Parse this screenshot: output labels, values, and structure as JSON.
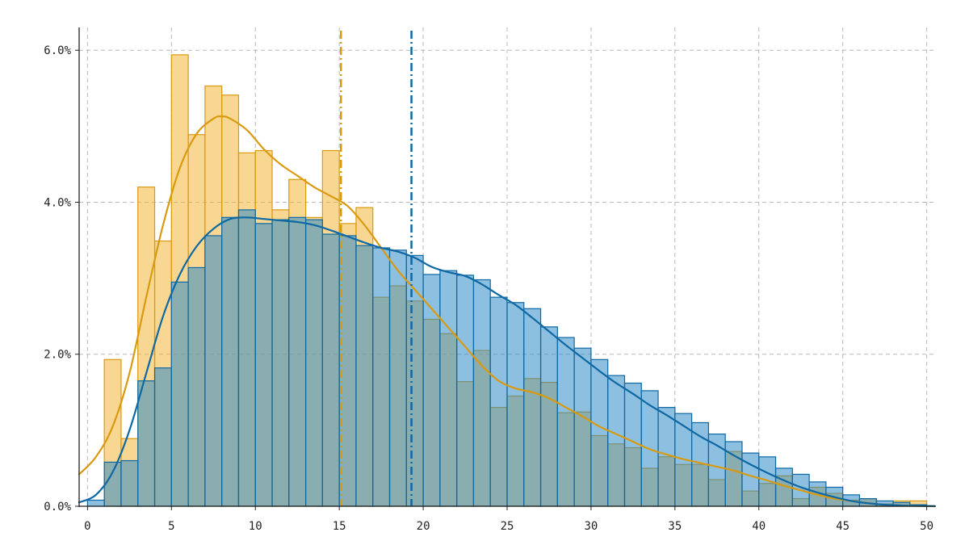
{
  "chart_data": {
    "type": "bar",
    "title": "",
    "xlabel": "",
    "ylabel": "",
    "xlim": [
      -0.5,
      50.5
    ],
    "ylim": [
      0,
      6.3
    ],
    "bin_width": 1,
    "x_ticks": [
      0,
      5,
      10,
      15,
      20,
      25,
      30,
      35,
      40,
      45,
      50
    ],
    "x_tick_labels": [
      "0",
      "5",
      "10",
      "15",
      "20",
      "25",
      "30",
      "35",
      "40",
      "45",
      "50"
    ],
    "y_ticks": [
      0,
      2,
      4,
      6
    ],
    "y_tick_labels": [
      "0.0%",
      "2.0%",
      "4.0%",
      "6.0%"
    ],
    "grid": true,
    "legend": "none",
    "series": [
      {
        "color": "#F2B63A",
        "edge_color": "#D99A0E",
        "bins_start": [
          0,
          1,
          2,
          3,
          4,
          5,
          6,
          7,
          8,
          9,
          10,
          11,
          12,
          13,
          14,
          15,
          16,
          17,
          18,
          19,
          20,
          21,
          22,
          23,
          24,
          25,
          26,
          27,
          28,
          29,
          30,
          31,
          32,
          33,
          34,
          35,
          36,
          37,
          38,
          39,
          40,
          41,
          42,
          43,
          44,
          45,
          46,
          47,
          48,
          49
        ],
        "values": [
          0,
          1.93,
          0.89,
          4.2,
          3.49,
          5.94,
          4.89,
          5.53,
          5.41,
          4.65,
          4.68,
          3.9,
          4.3,
          3.8,
          4.68,
          3.72,
          3.93,
          2.75,
          2.9,
          2.7,
          2.46,
          2.27,
          1.64,
          2.05,
          1.3,
          1.45,
          1.68,
          1.63,
          1.23,
          1.24,
          0.93,
          0.82,
          0.77,
          0.5,
          0.65,
          0.55,
          0.55,
          0.35,
          0.72,
          0.2,
          0.3,
          0.4,
          0.1,
          0.25,
          0.17,
          0.08,
          0.1,
          0.03,
          0.07,
          0.07
        ],
        "kde_x": [
          -0.5,
          0.5,
          1.5,
          2.5,
          3.5,
          4.5,
          5.5,
          6.5,
          7.5,
          8,
          8.5,
          9.5,
          10.5,
          11.5,
          12.5,
          13.5,
          14.5,
          15.5,
          16.5,
          17.5,
          18.5,
          19.5,
          20.5,
          21.5,
          22.5,
          23.5,
          24.5,
          25.5,
          26.5,
          27.5,
          28.5,
          29.5,
          30.5,
          31.5,
          32.5,
          33.5,
          34.5,
          35.5,
          36.5,
          37.5,
          38.5,
          39.5,
          40.5,
          41.5,
          42.5,
          43.5,
          44.5,
          45.5,
          46.5,
          47.5,
          48.5,
          49.5,
          50.5
        ],
        "kde_y": [
          0.42,
          0.65,
          1.05,
          1.75,
          2.75,
          3.7,
          4.45,
          4.9,
          5.1,
          5.13,
          5.1,
          4.95,
          4.7,
          4.5,
          4.35,
          4.2,
          4.08,
          3.95,
          3.7,
          3.4,
          3.1,
          2.85,
          2.6,
          2.35,
          2.1,
          1.85,
          1.65,
          1.55,
          1.5,
          1.42,
          1.3,
          1.18,
          1.05,
          0.95,
          0.85,
          0.75,
          0.68,
          0.62,
          0.57,
          0.52,
          0.47,
          0.4,
          0.34,
          0.27,
          0.21,
          0.15,
          0.1,
          0.07,
          0.04,
          0.02,
          0.01,
          0.005,
          0
        ],
        "mean": 15.1
      },
      {
        "color": "#2F8BC6",
        "edge_color": "#0E68A4",
        "bins_start": [
          0,
          1,
          2,
          3,
          4,
          5,
          6,
          7,
          8,
          9,
          10,
          11,
          12,
          13,
          14,
          15,
          16,
          17,
          18,
          19,
          20,
          21,
          22,
          23,
          24,
          25,
          26,
          27,
          28,
          29,
          30,
          31,
          32,
          33,
          34,
          35,
          36,
          37,
          38,
          39,
          40,
          41,
          42,
          43,
          44,
          45,
          46,
          47,
          48,
          49
        ],
        "values": [
          0.08,
          0.58,
          0.6,
          1.65,
          1.82,
          2.95,
          3.14,
          3.56,
          3.8,
          3.9,
          3.72,
          3.77,
          3.8,
          3.77,
          3.58,
          3.56,
          3.43,
          3.4,
          3.37,
          3.3,
          3.05,
          3.1,
          3.04,
          2.98,
          2.75,
          2.68,
          2.6,
          2.36,
          2.22,
          2.08,
          1.93,
          1.72,
          1.62,
          1.52,
          1.3,
          1.22,
          1.1,
          0.95,
          0.85,
          0.7,
          0.65,
          0.5,
          0.42,
          0.32,
          0.25,
          0.15,
          0.1,
          0.07,
          0.05,
          0.02
        ],
        "kde_x": [
          -0.5,
          0.5,
          1.5,
          2.5,
          3.5,
          4.5,
          5.5,
          6.5,
          7.5,
          8.5,
          9.5,
          10.5,
          11.5,
          12.5,
          13.5,
          14.5,
          15.5,
          16.5,
          17.5,
          18.5,
          19.5,
          20.5,
          21.5,
          22.5,
          23.5,
          24.5,
          25.5,
          26.5,
          27.5,
          28.5,
          29.5,
          30.5,
          31.5,
          32.5,
          33.5,
          34.5,
          35.5,
          36.5,
          37.5,
          38.5,
          39.5,
          40.5,
          41.5,
          42.5,
          43.5,
          44.5,
          45.5,
          46.5,
          47.5,
          48.5,
          49.5,
          50.5
        ],
        "kde_y": [
          0.05,
          0.15,
          0.45,
          1.0,
          1.75,
          2.5,
          3.05,
          3.42,
          3.65,
          3.78,
          3.8,
          3.78,
          3.76,
          3.74,
          3.7,
          3.63,
          3.55,
          3.47,
          3.4,
          3.35,
          3.27,
          3.15,
          3.08,
          3.03,
          2.92,
          2.78,
          2.65,
          2.48,
          2.3,
          2.12,
          1.95,
          1.78,
          1.62,
          1.48,
          1.33,
          1.2,
          1.06,
          0.92,
          0.8,
          0.67,
          0.55,
          0.44,
          0.34,
          0.25,
          0.18,
          0.12,
          0.07,
          0.04,
          0.02,
          0.01,
          0.005,
          0.002
        ],
        "mean": 19.3
      }
    ]
  }
}
